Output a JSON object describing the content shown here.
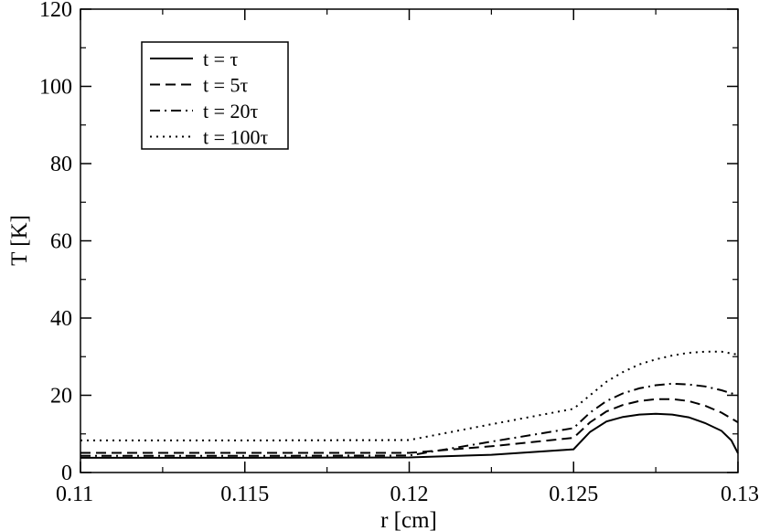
{
  "chart_data": {
    "type": "line",
    "title": "",
    "xlabel": "r [cm]",
    "ylabel": "T [K]",
    "xlim": [
      0.11,
      0.13
    ],
    "ylim": [
      0,
      120
    ],
    "x_ticks": [
      "0.11",
      "0.115",
      "0.12",
      "0.125",
      "0.13"
    ],
    "y_ticks": [
      "0",
      "20",
      "40",
      "60",
      "80",
      "100",
      "120"
    ],
    "grid": false,
    "legend_position": "top-left",
    "series": [
      {
        "name": "t = τ",
        "style": "solid",
        "points": [
          [
            0.11,
            3.8
          ],
          [
            0.115,
            3.8
          ],
          [
            0.12,
            3.9
          ],
          [
            0.1225,
            4.6
          ],
          [
            0.125,
            6.0
          ],
          [
            0.1255,
            10.5
          ],
          [
            0.126,
            13.2
          ],
          [
            0.1265,
            14.4
          ],
          [
            0.127,
            15.0
          ],
          [
            0.1275,
            15.2
          ],
          [
            0.128,
            15.0
          ],
          [
            0.1285,
            14.3
          ],
          [
            0.129,
            12.8
          ],
          [
            0.1295,
            10.8
          ],
          [
            0.1298,
            8.3
          ],
          [
            0.13,
            5.0
          ]
        ]
      },
      {
        "name": "t = 5τ",
        "style": "dashed",
        "points": [
          [
            0.11,
            5.1
          ],
          [
            0.115,
            5.1
          ],
          [
            0.12,
            5.1
          ],
          [
            0.1225,
            6.8
          ],
          [
            0.125,
            9.0
          ],
          [
            0.1255,
            13.0
          ],
          [
            0.126,
            15.8
          ],
          [
            0.1265,
            17.5
          ],
          [
            0.127,
            18.5
          ],
          [
            0.1275,
            19.0
          ],
          [
            0.128,
            19.0
          ],
          [
            0.1285,
            18.5
          ],
          [
            0.129,
            17.3
          ],
          [
            0.1295,
            15.5
          ],
          [
            0.13,
            13.0
          ]
        ]
      },
      {
        "name": "t = 20τ",
        "style": "dashdot",
        "points": [
          [
            0.11,
            4.3
          ],
          [
            0.115,
            4.3
          ],
          [
            0.12,
            4.4
          ],
          [
            0.1225,
            8.0
          ],
          [
            0.125,
            11.5
          ],
          [
            0.1255,
            15.5
          ],
          [
            0.126,
            18.5
          ],
          [
            0.1265,
            20.5
          ],
          [
            0.127,
            21.8
          ],
          [
            0.1275,
            22.6
          ],
          [
            0.128,
            23.0
          ],
          [
            0.1285,
            22.8
          ],
          [
            0.129,
            22.3
          ],
          [
            0.1295,
            21.3
          ],
          [
            0.13,
            20.0
          ]
        ]
      },
      {
        "name": "t = 100τ",
        "style": "dotted",
        "points": [
          [
            0.11,
            8.3
          ],
          [
            0.115,
            8.3
          ],
          [
            0.12,
            8.4
          ],
          [
            0.1225,
            12.5
          ],
          [
            0.125,
            16.5
          ],
          [
            0.1255,
            20.0
          ],
          [
            0.126,
            23.5
          ],
          [
            0.1265,
            26.0
          ],
          [
            0.127,
            28.0
          ],
          [
            0.1275,
            29.3
          ],
          [
            0.128,
            30.3
          ],
          [
            0.1285,
            31.0
          ],
          [
            0.129,
            31.3
          ],
          [
            0.1295,
            31.3
          ],
          [
            0.13,
            30.5
          ]
        ]
      }
    ]
  }
}
